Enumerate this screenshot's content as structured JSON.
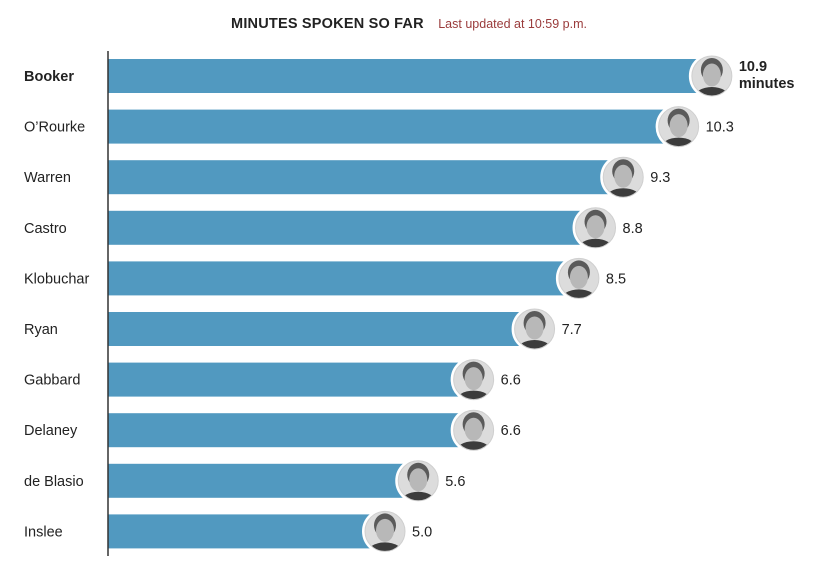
{
  "header": {
    "title": "MINUTES SPOKEN SO FAR",
    "subtitle": "Last updated at 10:59 p.m."
  },
  "colors": {
    "bar": "#5199c0",
    "axis": "#333333",
    "text": "#222222",
    "subtitle": "#9a3b3b"
  },
  "chart_data": {
    "type": "bar",
    "orientation": "horizontal",
    "title": "MINUTES SPOKEN SO FAR",
    "subtitle": "Last updated at 10:59 p.m.",
    "xlabel": "",
    "ylabel": "",
    "unit_label": "minutes",
    "xlim": [
      0,
      13
    ],
    "grid": false,
    "categories": [
      "Booker",
      "O’Rourke",
      "Warren",
      "Castro",
      "Klobuchar",
      "Ryan",
      "Gabbard",
      "Delaney",
      "de Blasio",
      "Inslee"
    ],
    "values": [
      10.9,
      10.3,
      9.3,
      8.8,
      8.5,
      7.7,
      6.6,
      6.6,
      5.6,
      5.0
    ],
    "value_labels": [
      "10.9",
      "10.3",
      "9.3",
      "8.8",
      "8.5",
      "7.7",
      "6.6",
      "6.6",
      "5.6",
      "5.0"
    ],
    "highlight_index": 0,
    "avatars": [
      "booker-photo",
      "orourke-photo",
      "warren-photo",
      "castro-photo",
      "klobuchar-photo",
      "ryan-photo",
      "gabbard-photo",
      "delaney-photo",
      "deblasio-photo",
      "inslee-photo"
    ]
  }
}
